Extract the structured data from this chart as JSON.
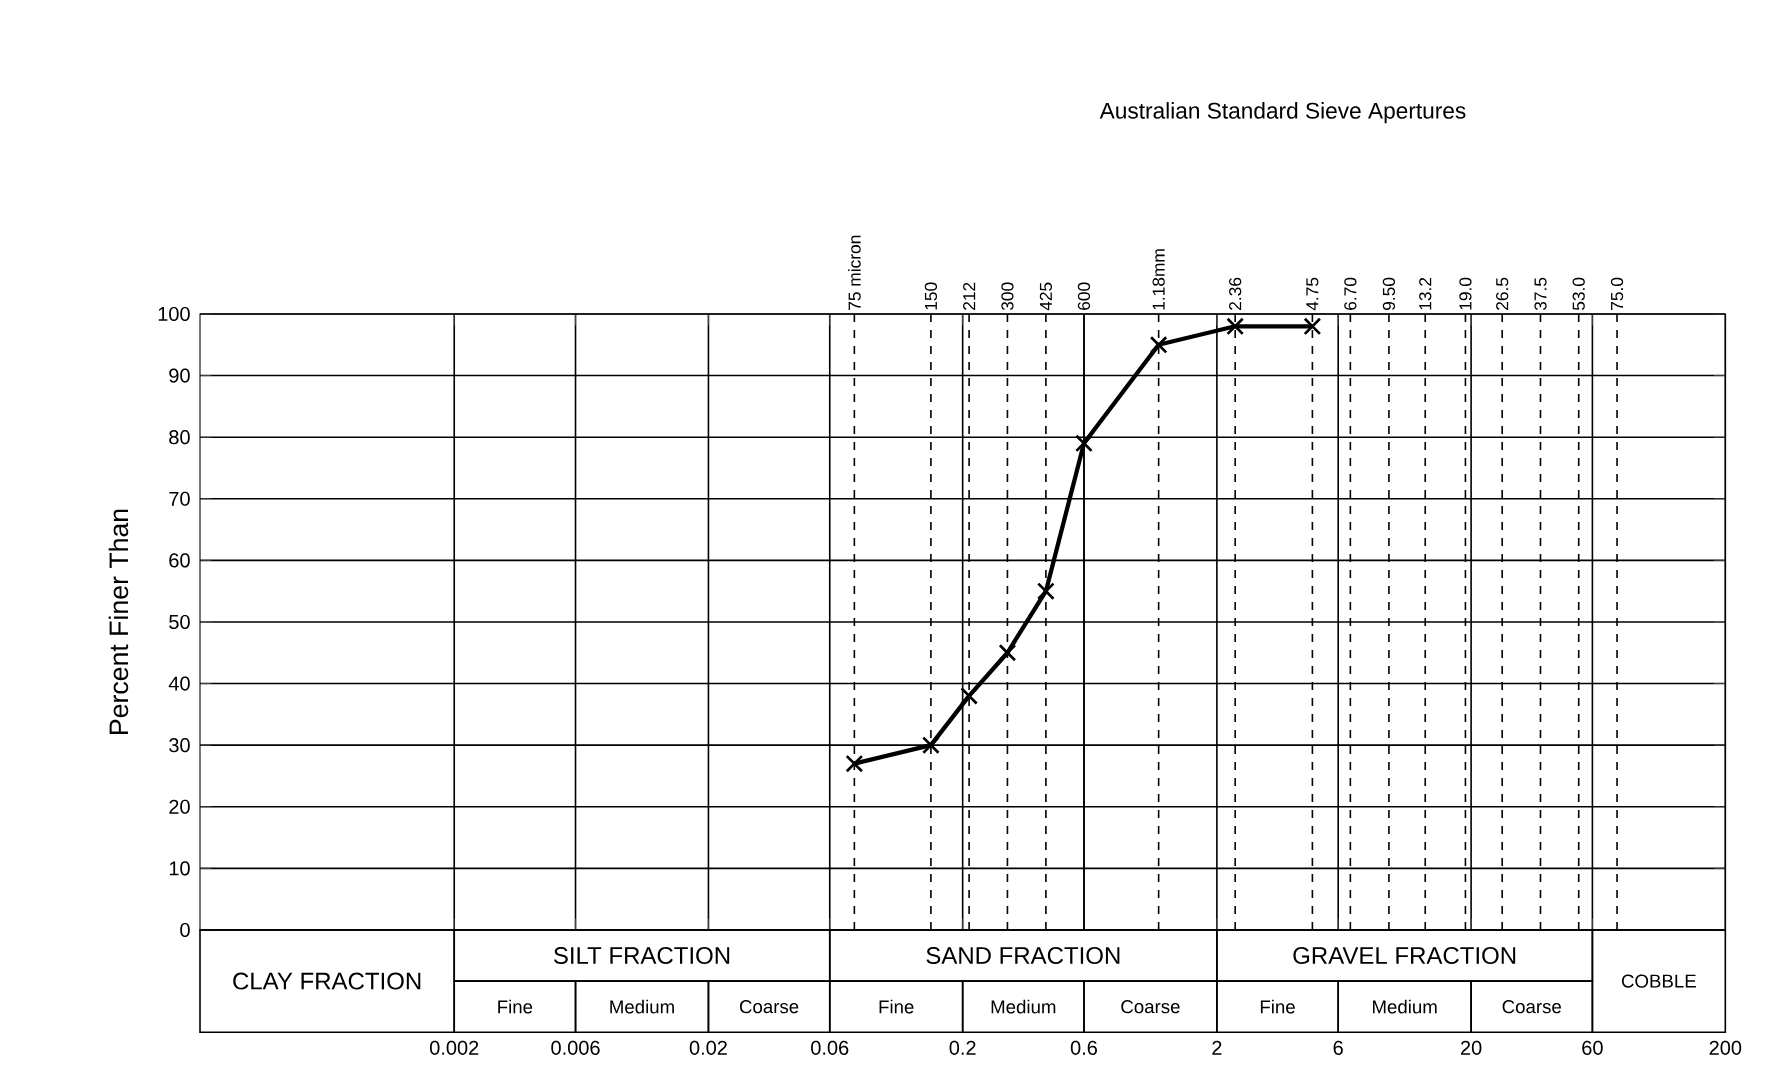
{
  "chart_data": {
    "type": "line",
    "title": "Australian Standard Sieve Apertures",
    "ylabel": "Percent Finer Than",
    "log": "x",
    "grid": true,
    "marker": "cross",
    "line_style": "solid",
    "xlim": [
      0.0002,
      200
    ],
    "ylim": [
      0,
      100
    ],
    "xticks": [
      0.002,
      0.006,
      0.02,
      0.06,
      0.2,
      0.6,
      2,
      6,
      20,
      60,
      200
    ],
    "yticks": [
      0,
      10,
      20,
      30,
      40,
      50,
      60,
      70,
      80,
      90,
      100
    ],
    "ref_lines": [
      {
        "axis": "x",
        "value": 0.075,
        "label": "75 micron",
        "line_style": "dashed"
      },
      {
        "axis": "x",
        "value": 0.15,
        "label": "150",
        "line_style": "dashed"
      },
      {
        "axis": "x",
        "value": 0.212,
        "label": "212",
        "line_style": "dashed"
      },
      {
        "axis": "x",
        "value": 0.3,
        "label": "300",
        "line_style": "dashed"
      },
      {
        "axis": "x",
        "value": 0.425,
        "label": "425",
        "line_style": "dashed"
      },
      {
        "axis": "x",
        "value": 0.6,
        "label": "600",
        "line_style": "solid"
      },
      {
        "axis": "x",
        "value": 1.18,
        "label": "1.18mm",
        "line_style": "dashed"
      },
      {
        "axis": "x",
        "value": 2.36,
        "label": "2.36",
        "line_style": "dashed"
      },
      {
        "axis": "x",
        "value": 4.75,
        "label": "4.75",
        "line_style": "dashed"
      },
      {
        "axis": "x",
        "value": 6.7,
        "label": "6.70",
        "line_style": "dashed"
      },
      {
        "axis": "x",
        "value": 9.5,
        "label": "9.50",
        "line_style": "dashed"
      },
      {
        "axis": "x",
        "value": 13.2,
        "label": "13.2",
        "line_style": "dashed"
      },
      {
        "axis": "x",
        "value": 19,
        "label": "19.0",
        "line_style": "dashed"
      },
      {
        "axis": "x",
        "value": 26.5,
        "label": "26.5",
        "line_style": "dashed"
      },
      {
        "axis": "x",
        "value": 37.5,
        "label": "37.5",
        "line_style": "dashed"
      },
      {
        "axis": "x",
        "value": 53,
        "label": "53.0",
        "line_style": "dashed"
      },
      {
        "axis": "x",
        "value": 75,
        "label": "75.0",
        "line_style": "dashed"
      }
    ],
    "series": [
      {
        "color": "#000000",
        "x": [
          0.075,
          0.15,
          0.212,
          0.3,
          0.425,
          0.6,
          1.18,
          2.36,
          4.75
        ],
        "values": [
          27,
          30,
          38,
          45,
          55,
          79,
          95,
          98,
          98
        ]
      }
    ],
    "annotations": [
      "CLAY FRACTION",
      "SILT FRACTION",
      "Fine",
      "Medium",
      "Coarse",
      "SAND FRACTION",
      "Fine",
      "Medium",
      "Coarse",
      "GRAVEL FRACTION",
      "Fine",
      "Medium",
      "Coarse",
      "COBBLE"
    ]
  }
}
